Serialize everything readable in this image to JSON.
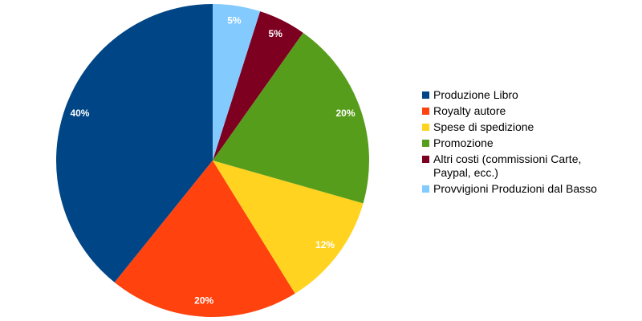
{
  "chart_data": {
    "type": "pie",
    "categories": [
      "Produzione Libro",
      "Royalty autore",
      "Spese di spedizione",
      "Promozione",
      "Altri costi (commissioni Carte, Paypal, ecc.)",
      "Provvigioni Produzioni dal Basso"
    ],
    "values": [
      40,
      20,
      12,
      20,
      5,
      5
    ],
    "value_labels": [
      "40%",
      "20%",
      "12%",
      "20%",
      "5%",
      "5%"
    ],
    "colors": [
      "#004586",
      "#ff420e",
      "#ffd320",
      "#579d1c",
      "#7e0021",
      "#83caff"
    ],
    "legend": "right"
  }
}
